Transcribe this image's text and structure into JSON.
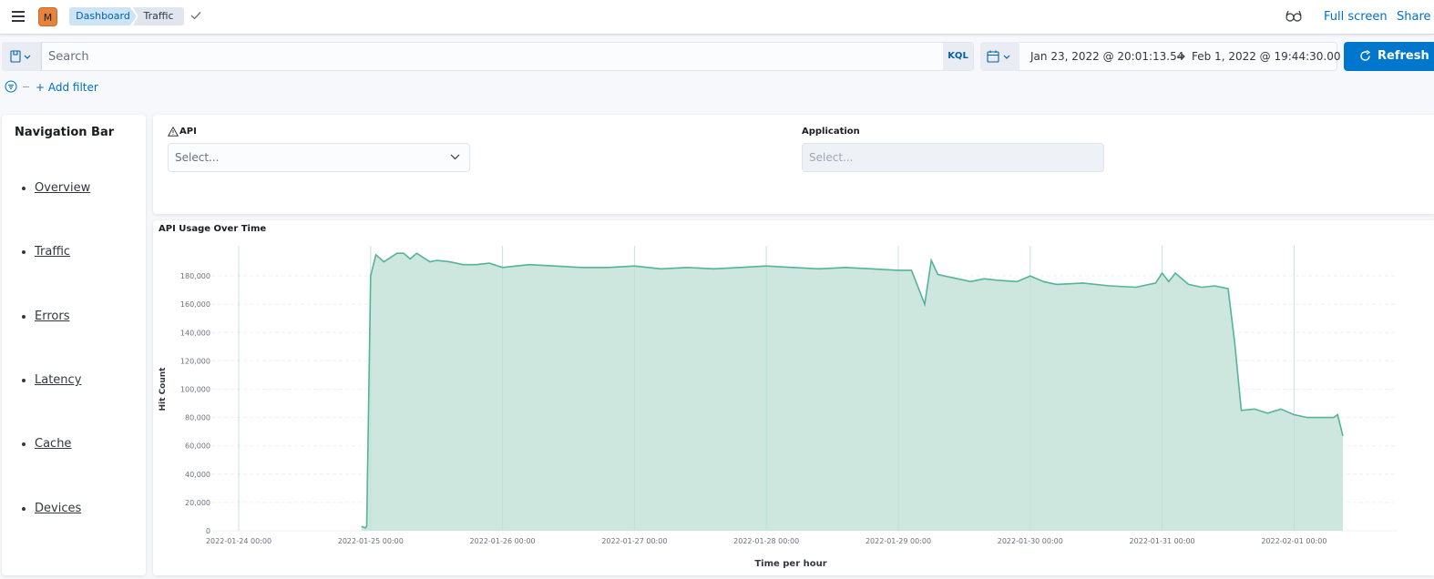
{
  "header": {
    "avatar_initial": "M",
    "breadcrumbs": [
      {
        "label": "Dashboard"
      },
      {
        "label": "Traffic"
      }
    ],
    "links": {
      "fullscreen": "Full screen",
      "share": "Share"
    }
  },
  "query_bar": {
    "search_placeholder": "Search",
    "language_label": "KQL",
    "date_start": "Jan 23, 2022 @ 20:01:13.54",
    "date_end": "Feb 1, 2022 @ 19:44:30.00",
    "refresh_label": "Refresh"
  },
  "filters": {
    "add_label": "+ Add filter"
  },
  "nav": {
    "title": "Navigation Bar",
    "items": [
      {
        "label": "Overview"
      },
      {
        "label": "Traffic"
      },
      {
        "label": "Errors"
      },
      {
        "label": "Latency"
      },
      {
        "label": "Cache"
      },
      {
        "label": "Devices"
      }
    ]
  },
  "controls": {
    "api_label": "API",
    "api_placeholder": "Select...",
    "application_label": "Application",
    "application_placeholder": "Select..."
  },
  "colors": {
    "accent": "#0077cc",
    "series_line": "#54b399",
    "series_fill": "#cde7df"
  },
  "chart_data": {
    "type": "area",
    "title": "API Usage Over Time",
    "xlabel": "Time per hour",
    "ylabel": "Hit Count",
    "ylim": [
      0,
      200000
    ],
    "yticks": [
      0,
      20000,
      40000,
      60000,
      80000,
      100000,
      120000,
      140000,
      160000,
      180000
    ],
    "ytick_labels": [
      "0",
      "20,000",
      "40,000",
      "60,000",
      "80,000",
      "100,000",
      "120,000",
      "140,000",
      "160,000",
      "180,000"
    ],
    "xticks": [
      "2022-01-24 00:00",
      "2022-01-25 00:00",
      "2022-01-26 00:00",
      "2022-01-27 00:00",
      "2022-01-28 00:00",
      "2022-01-29 00:00",
      "2022-01-30 00:00",
      "2022-01-31 00:00",
      "2022-02-01 00:00"
    ],
    "grid": true,
    "series": [
      {
        "x_unit": "days after 2022-01-24 00:00",
        "x": [
          0.93,
          0.96,
          0.97,
          1.0,
          1.04,
          1.1,
          1.15,
          1.2,
          1.25,
          1.3,
          1.35,
          1.4,
          1.45,
          1.5,
          1.6,
          1.7,
          1.8,
          1.9,
          2.0,
          2.2,
          2.4,
          2.6,
          2.8,
          3.0,
          3.2,
          3.4,
          3.6,
          3.8,
          4.0,
          4.2,
          4.4,
          4.6,
          4.8,
          5.0,
          5.1,
          5.2,
          5.25,
          5.3,
          5.35,
          5.45,
          5.55,
          5.65,
          5.75,
          5.9,
          6.0,
          6.1,
          6.2,
          6.4,
          6.6,
          6.8,
          6.95,
          7.0,
          7.05,
          7.1,
          7.2,
          7.3,
          7.4,
          7.5,
          7.55,
          7.6,
          7.7,
          7.8,
          7.9,
          8.0,
          8.1,
          8.2,
          8.3,
          8.33,
          8.37
        ],
        "y": [
          3000,
          2000,
          3000,
          180000,
          195000,
          190000,
          193000,
          196000,
          196000,
          192000,
          196000,
          193000,
          190000,
          191000,
          190000,
          188000,
          188000,
          189000,
          186000,
          188000,
          187000,
          186000,
          186000,
          187000,
          185000,
          186000,
          185000,
          186000,
          187000,
          186000,
          185000,
          186000,
          185000,
          184000,
          184000,
          160000,
          191000,
          181000,
          180000,
          178000,
          176000,
          178000,
          177000,
          176000,
          180000,
          176000,
          174000,
          175000,
          173000,
          172000,
          175000,
          182000,
          176000,
          182000,
          174000,
          172000,
          173000,
          171000,
          133000,
          85000,
          86000,
          83000,
          86000,
          82000,
          80000,
          80000,
          80000,
          82000,
          67000
        ]
      }
    ]
  }
}
